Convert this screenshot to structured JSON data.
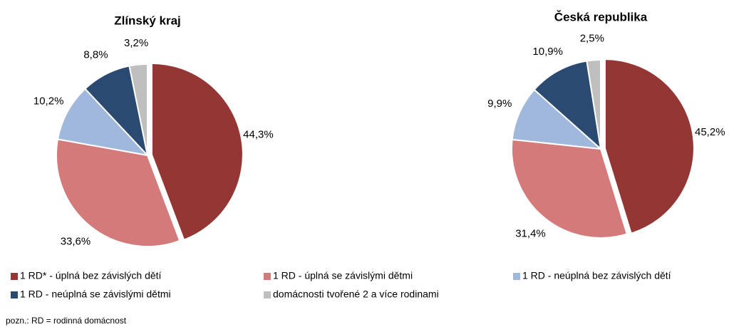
{
  "chart_data": [
    {
      "type": "pie",
      "title": "Zlínský kraj",
      "values": [
        44.3,
        33.6,
        10.2,
        8.8,
        3.2
      ],
      "value_labels": [
        "44,3%",
        "33,6%",
        "10,2%",
        "8,8%",
        "3,2%"
      ]
    },
    {
      "type": "pie",
      "title": "Česká republika",
      "values": [
        45.2,
        31.4,
        9.9,
        10.9,
        2.5
      ],
      "value_labels": [
        "45,2%",
        "31,4%",
        "9,9%",
        "10,9%",
        "2,5%"
      ]
    }
  ],
  "legend": [
    {
      "name": "1 RD* - úplná bez závislých dětí",
      "color": "#943634"
    },
    {
      "name": "1 RD - úplná se závislými dětmi",
      "color": "#d47a7a"
    },
    {
      "name": "1 RD - neúplná bez závislých dětí",
      "color": "#9fb8dc"
    },
    {
      "name": "1 RD - neúplná se závislými dětmi",
      "color": "#2a4a72"
    },
    {
      "name": "domácnosti tvořené 2 a více rodinami",
      "color": "#bfbfbf"
    }
  ],
  "note": "pozn.: RD = rodinná domácnost"
}
